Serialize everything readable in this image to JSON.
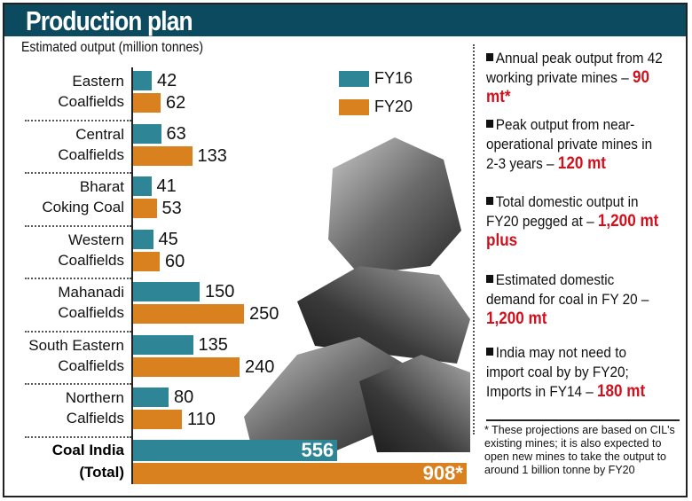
{
  "header": {
    "title": "Production plan"
  },
  "colors": {
    "header": "#0c4a5f",
    "fy16": "#2e8595",
    "fy20": "#d9801f",
    "highlight": "#d2101d"
  },
  "chart_data": {
    "type": "bar",
    "orientation": "horizontal",
    "subtitle": "Estimated output (million tonnes)",
    "categories": [
      [
        "Eastern",
        "Coalfields"
      ],
      [
        "Central",
        "Coalfields"
      ],
      [
        "Bharat",
        "Coking Coal"
      ],
      [
        "Western",
        "Coalfields"
      ],
      [
        "Mahanadi",
        "Coalfields"
      ],
      [
        "South Eastern",
        "Coalfields"
      ],
      [
        "Northern",
        "Calfields"
      ]
    ],
    "series": [
      {
        "name": "FY16",
        "values": [
          42,
          63,
          41,
          45,
          150,
          135,
          80
        ],
        "labels": [
          "42",
          "63",
          "41",
          "45",
          "150",
          "135",
          "80"
        ]
      },
      {
        "name": "FY20",
        "values": [
          62,
          133,
          53,
          60,
          250,
          240,
          110
        ],
        "labels": [
          "62",
          "133",
          "53",
          "60",
          "250",
          "240",
          "110"
        ]
      }
    ],
    "total": {
      "label": [
        "Coal India",
        "(Total)"
      ],
      "values": [
        556,
        908
      ],
      "labels": [
        "556",
        "908*"
      ]
    },
    "legend_position": "top-right",
    "grid": false
  },
  "side": {
    "notes": [
      {
        "text": "Annual peak output from 42 working private mines –",
        "value": "90 mt*"
      },
      {
        "text": "Peak output from near-operational private mines in 2-3 years –",
        "value": "120 mt"
      },
      {
        "text": "Total domestic output in FY20 pegged at –",
        "value": "1,200 mt plus"
      },
      {
        "text": "Estimated domestic demand for coal in FY 20 –",
        "value": "1,200 mt"
      },
      {
        "text": "India may not need to import coal by by FY20; Imports in FY14 –",
        "value": "180 mt"
      }
    ],
    "footnote": "* These projections are based on CIL's existing mines; it is also expected to open new mines to take the output to around 1 billion tonne by FY20"
  }
}
